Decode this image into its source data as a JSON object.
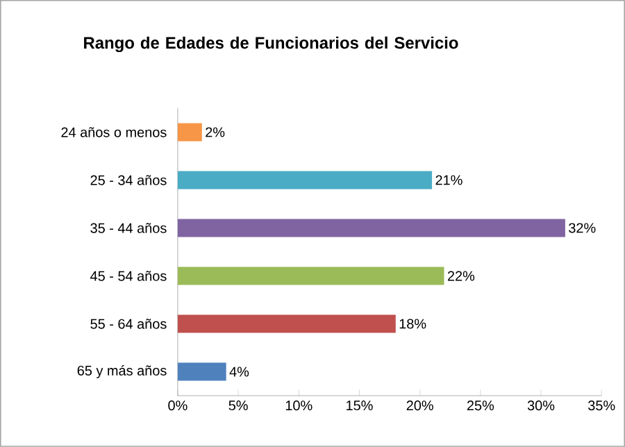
{
  "chart_data": {
    "type": "bar",
    "orientation": "horizontal",
    "title": "Rango  de Edades de Funcionarios del Servicio",
    "categories": [
      "24 años o menos",
      "25 - 34 años",
      "35 - 44 años",
      "45 - 54 años",
      "55 - 64 años",
      "65  y más años"
    ],
    "values": [
      2,
      21,
      32,
      22,
      18,
      4
    ],
    "colors": [
      "#f79646",
      "#4bacc6",
      "#8064a2",
      "#9bbb59",
      "#c0504d",
      "#4f81bd"
    ],
    "value_labels": [
      "2%",
      "21%",
      "32%",
      "22%",
      "18%",
      "4%"
    ],
    "xlim": [
      0,
      35
    ],
    "xticks": [
      {
        "value": 0,
        "label": "0%"
      },
      {
        "value": 5,
        "label": "5%"
      },
      {
        "value": 10,
        "label": "10%"
      },
      {
        "value": 15,
        "label": "15%"
      },
      {
        "value": 20,
        "label": "20%"
      },
      {
        "value": 25,
        "label": "25%"
      },
      {
        "value": 30,
        "label": "30%"
      },
      {
        "value": 35,
        "label": "35%"
      }
    ],
    "grid": false
  }
}
